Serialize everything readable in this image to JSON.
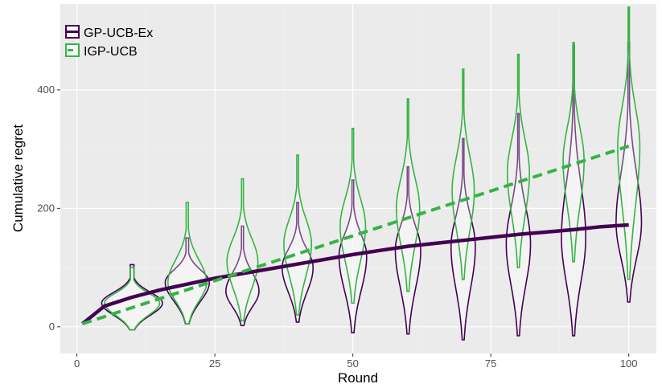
{
  "chart_data": {
    "type": "line",
    "xlabel": "Round",
    "ylabel": "Cumulative regret",
    "xlim": [
      -3,
      105
    ],
    "ylim": [
      -45,
      545
    ],
    "x_ticks": [
      0,
      25,
      50,
      75,
      100
    ],
    "y_ticks": [
      0,
      200,
      400
    ],
    "x_tick_labels": [
      "0",
      "25",
      "50",
      "75",
      "100"
    ],
    "y_tick_labels": [
      "0",
      "200",
      "400"
    ],
    "grid": true,
    "legend_position": "top-left",
    "series": [
      {
        "name": "GP-UCB-Ex",
        "color": "#440154",
        "line_style": "solid",
        "mean_x": [
          1,
          5,
          10,
          15,
          20,
          25,
          30,
          35,
          40,
          45,
          50,
          55,
          60,
          65,
          70,
          75,
          80,
          85,
          90,
          95,
          100
        ],
        "mean_y": [
          5,
          35,
          50,
          62,
          72,
          82,
          90,
          98,
          106,
          114,
          122,
          129,
          136,
          141,
          146,
          151,
          156,
          160,
          164,
          169,
          172
        ],
        "violins": [
          {
            "x": 10,
            "min": -5,
            "max": 105,
            "peak": 40,
            "width": 5.5
          },
          {
            "x": 20,
            "min": 5,
            "max": 150,
            "peak": 75,
            "width": 4.0
          },
          {
            "x": 30,
            "min": 2,
            "max": 170,
            "peak": 60,
            "width": 3.0
          },
          {
            "x": 40,
            "min": 8,
            "max": 210,
            "peak": 100,
            "width": 2.8
          },
          {
            "x": 50,
            "min": -10,
            "max": 248,
            "peak": 120,
            "width": 2.5
          },
          {
            "x": 60,
            "min": -12,
            "max": 270,
            "peak": 130,
            "width": 2.3
          },
          {
            "x": 70,
            "min": -22,
            "max": 318,
            "peak": 135,
            "width": 2.2
          },
          {
            "x": 80,
            "min": -15,
            "max": 360,
            "peak": 140,
            "width": 2.2
          },
          {
            "x": 90,
            "min": -15,
            "max": 475,
            "peak": 150,
            "width": 2.2
          },
          {
            "x": 100,
            "min": 42,
            "max": 480,
            "peak": 175,
            "width": 2.3
          }
        ]
      },
      {
        "name": "IGP-UCB",
        "color": "#35b443",
        "line_style": "dashed",
        "mean_x": [
          1,
          100
        ],
        "mean_y": [
          5,
          305
        ],
        "violins": [
          {
            "x": 10,
            "min": -5,
            "max": 100,
            "peak": 40,
            "width": 5.0
          },
          {
            "x": 20,
            "min": 5,
            "max": 210,
            "peak": 75,
            "width": 3.5
          },
          {
            "x": 30,
            "min": 10,
            "max": 250,
            "peak": 110,
            "width": 2.8
          },
          {
            "x": 40,
            "min": 20,
            "max": 290,
            "peak": 140,
            "width": 2.5
          },
          {
            "x": 50,
            "min": 40,
            "max": 335,
            "peak": 170,
            "width": 2.3
          },
          {
            "x": 60,
            "min": 60,
            "max": 385,
            "peak": 200,
            "width": 2.1
          },
          {
            "x": 70,
            "min": 80,
            "max": 435,
            "peak": 230,
            "width": 2.0
          },
          {
            "x": 80,
            "min": 100,
            "max": 460,
            "peak": 260,
            "width": 2.0
          },
          {
            "x": 90,
            "min": 110,
            "max": 480,
            "peak": 280,
            "width": 1.9
          },
          {
            "x": 100,
            "min": 80,
            "max": 540,
            "peak": 305,
            "width": 2.0
          }
        ]
      }
    ]
  }
}
